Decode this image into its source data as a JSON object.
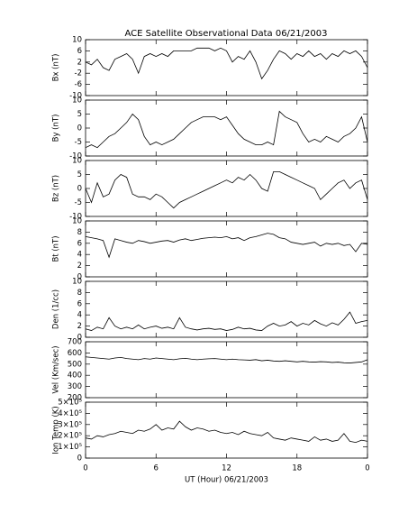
{
  "chart_data": [
    {
      "type": "line",
      "title": "ACE Satellite Observational Data   06/21/2003",
      "ylabel": "Bx (nT)",
      "color": "#000000",
      "xlim": [
        0,
        24
      ],
      "ylim": [
        -10,
        10
      ],
      "yticks": [
        -10,
        -6,
        -2,
        2,
        6,
        10
      ],
      "x": [
        0,
        0.5,
        1,
        1.5,
        2,
        2.5,
        3,
        3.5,
        4,
        4.5,
        5,
        5.5,
        6,
        6.5,
        7,
        7.5,
        8,
        8.5,
        9,
        9.5,
        10,
        10.5,
        11,
        11.5,
        12,
        12.5,
        13,
        13.5,
        14,
        14.5,
        15,
        15.5,
        16,
        16.5,
        17,
        17.5,
        18,
        18.5,
        19,
        19.5,
        20,
        20.5,
        21,
        21.5,
        22,
        22.5,
        23,
        23.5,
        24
      ],
      "values": [
        2,
        1,
        3,
        0,
        -1,
        3,
        4,
        5,
        3,
        -2,
        4,
        5,
        4,
        5,
        4,
        6,
        6,
        6,
        6,
        7,
        7,
        7,
        6,
        7,
        6,
        2,
        4,
        3,
        6,
        2,
        -4,
        -1,
        3,
        6,
        5,
        3,
        5,
        4,
        6,
        4,
        5,
        3,
        5,
        4,
        6,
        5,
        6,
        4,
        0
      ]
    },
    {
      "type": "line",
      "ylabel": "By (nT)",
      "color": "#000000",
      "xlim": [
        0,
        24
      ],
      "ylim": [
        -10,
        10
      ],
      "yticks": [
        -10,
        -5,
        0,
        5,
        10
      ],
      "x": [
        0,
        0.5,
        1,
        1.5,
        2,
        2.5,
        3,
        3.5,
        4,
        4.5,
        5,
        5.5,
        6,
        6.5,
        7,
        7.5,
        8,
        8.5,
        9,
        9.5,
        10,
        10.5,
        11,
        11.5,
        12,
        12.5,
        13,
        13.5,
        14,
        14.5,
        15,
        15.5,
        16,
        16.5,
        17,
        17.5,
        18,
        18.5,
        19,
        19.5,
        20,
        20.5,
        21,
        21.5,
        22,
        22.5,
        23,
        23.5,
        24
      ],
      "values": [
        -7,
        -6,
        -7,
        -5,
        -3,
        -2,
        0,
        2,
        5,
        3,
        -3,
        -6,
        -5,
        -6,
        -5,
        -4,
        -2,
        0,
        2,
        3,
        4,
        4,
        4,
        3,
        4,
        1,
        -2,
        -4,
        -5,
        -6,
        -6,
        -5,
        -6,
        6,
        4,
        3,
        2,
        -2,
        -5,
        -4,
        -5,
        -3,
        -4,
        -5,
        -3,
        -2,
        0,
        4,
        -5
      ]
    },
    {
      "type": "line",
      "ylabel": "Bz (nT)",
      "color": "#000000",
      "xlim": [
        0,
        24
      ],
      "ylim": [
        -10,
        10
      ],
      "yticks": [
        -10,
        -5,
        0,
        5,
        10
      ],
      "x": [
        0,
        0.5,
        1,
        1.5,
        2,
        2.5,
        3,
        3.5,
        4,
        4.5,
        5,
        5.5,
        6,
        6.5,
        7,
        7.5,
        8,
        8.5,
        9,
        9.5,
        10,
        10.5,
        11,
        11.5,
        12,
        12.5,
        13,
        13.5,
        14,
        14.5,
        15,
        15.5,
        16,
        16.5,
        17,
        17.5,
        18,
        18.5,
        19,
        19.5,
        20,
        20.5,
        21,
        21.5,
        22,
        22.5,
        23,
        23.5,
        24
      ],
      "values": [
        0,
        -5,
        2,
        -3,
        -2,
        3,
        5,
        4,
        -2,
        -3,
        -3,
        -4,
        -2,
        -3,
        -5,
        -7,
        -5,
        -4,
        -3,
        -2,
        -1,
        0,
        1,
        2,
        3,
        2,
        4,
        3,
        5,
        3,
        0,
        -1,
        6,
        6,
        5,
        4,
        3,
        2,
        1,
        0,
        -4,
        -2,
        0,
        2,
        3,
        0,
        2,
        3,
        -4
      ]
    },
    {
      "type": "line",
      "ylabel": "Bt (nT)",
      "color": "#000000",
      "xlim": [
        0,
        24
      ],
      "ylim": [
        0,
        10
      ],
      "yticks": [
        0,
        2,
        4,
        6,
        8,
        10
      ],
      "x": [
        0,
        0.5,
        1,
        1.5,
        2,
        2.5,
        3,
        3.5,
        4,
        4.5,
        5,
        5.5,
        6,
        6.5,
        7,
        7.5,
        8,
        8.5,
        9,
        9.5,
        10,
        10.5,
        11,
        11.5,
        12,
        12.5,
        13,
        13.5,
        14,
        14.5,
        15,
        15.5,
        16,
        16.5,
        17,
        17.5,
        18,
        18.5,
        19,
        19.5,
        20,
        20.5,
        21,
        21.5,
        22,
        22.5,
        23,
        23.5,
        24
      ],
      "values": [
        7.2,
        7,
        6.8,
        6.5,
        3.5,
        6.8,
        6.5,
        6.2,
        6,
        6.5,
        6.3,
        6,
        6.2,
        6.4,
        6.5,
        6.2,
        6.6,
        6.8,
        6.5,
        6.7,
        6.9,
        7,
        7.1,
        7,
        7.2,
        6.8,
        7,
        6.5,
        7,
        7.2,
        7.5,
        7.8,
        7.6,
        7,
        6.8,
        6.2,
        6,
        5.8,
        6,
        6.2,
        5.5,
        6,
        5.8,
        6,
        5.6,
        5.8,
        4.5,
        6,
        5.8
      ]
    },
    {
      "type": "line",
      "ylabel": "Den (1/cc)",
      "color": "#000000",
      "xlim": [
        0,
        24
      ],
      "ylim": [
        0,
        10
      ],
      "yticks": [
        0,
        2,
        4,
        6,
        8,
        10
      ],
      "x": [
        0,
        0.5,
        1,
        1.5,
        2,
        2.5,
        3,
        3.5,
        4,
        4.5,
        5,
        5.5,
        6,
        6.5,
        7,
        7.5,
        8,
        8.5,
        9,
        9.5,
        10,
        10.5,
        11,
        11.5,
        12,
        12.5,
        13,
        13.5,
        14,
        14.5,
        15,
        15.5,
        16,
        16.5,
        17,
        17.5,
        18,
        18.5,
        19,
        19.5,
        20,
        20.5,
        21,
        21.5,
        22,
        22.5,
        23,
        23.5,
        24
      ],
      "values": [
        1.5,
        1.2,
        1.8,
        1.5,
        3.5,
        2,
        1.5,
        1.8,
        1.5,
        2.2,
        1.5,
        1.8,
        2,
        1.6,
        1.8,
        1.5,
        3.5,
        1.8,
        1.5,
        1.3,
        1.5,
        1.6,
        1.4,
        1.5,
        1.2,
        1.4,
        1.8,
        1.5,
        1.6,
        1.3,
        1.2,
        2,
        2.5,
        2,
        2.2,
        2.8,
        2,
        2.5,
        2.2,
        3,
        2.4,
        2,
        2.6,
        2.2,
        3.2,
        4.5,
        2.5,
        2.8,
        3
      ]
    },
    {
      "type": "line",
      "ylabel": "Vel (Km/sec)",
      "color": "#000000",
      "xlim": [
        0,
        24
      ],
      "ylim": [
        200,
        700
      ],
      "yticks": [
        200,
        300,
        400,
        500,
        600,
        700
      ],
      "x": [
        0,
        0.5,
        1,
        1.5,
        2,
        2.5,
        3,
        3.5,
        4,
        4.5,
        5,
        5.5,
        6,
        6.5,
        7,
        7.5,
        8,
        8.5,
        9,
        9.5,
        10,
        10.5,
        11,
        11.5,
        12,
        12.5,
        13,
        13.5,
        14,
        14.5,
        15,
        15.5,
        16,
        16.5,
        17,
        17.5,
        18,
        18.5,
        19,
        19.5,
        20,
        20.5,
        21,
        21.5,
        22,
        22.5,
        23,
        23.5,
        24
      ],
      "values": [
        565,
        560,
        555,
        550,
        545,
        555,
        560,
        550,
        545,
        540,
        550,
        545,
        555,
        550,
        545,
        540,
        548,
        552,
        545,
        540,
        545,
        548,
        550,
        545,
        540,
        545,
        540,
        538,
        535,
        540,
        530,
        535,
        528,
        525,
        530,
        525,
        520,
        525,
        520,
        518,
        522,
        520,
        515,
        518,
        512,
        510,
        515,
        520,
        540
      ]
    },
    {
      "type": "line",
      "ylabel": "Ion Temp (K)",
      "xlabel": "UT (Hour)  06/21/2003",
      "color": "#000000",
      "xlim": [
        0,
        24
      ],
      "xticks": [
        0,
        6,
        12,
        18,
        {
          "value": 24,
          "label": "0"
        }
      ],
      "ylim": [
        0,
        500000
      ],
      "yticks": [
        0,
        {
          "value": 100000,
          "label": "1×10⁵"
        },
        {
          "value": 200000,
          "label": "2×10⁵"
        },
        {
          "value": 300000,
          "label": "3×10⁵"
        },
        {
          "value": 400000,
          "label": "4×10⁵"
        },
        {
          "value": 500000,
          "label": "5×10⁵"
        }
      ],
      "x": [
        0,
        0.5,
        1,
        1.5,
        2,
        2.5,
        3,
        3.5,
        4,
        4.5,
        5,
        5.5,
        6,
        6.5,
        7,
        7.5,
        8,
        8.5,
        9,
        9.5,
        10,
        10.5,
        11,
        11.5,
        12,
        12.5,
        13,
        13.5,
        14,
        14.5,
        15,
        15.5,
        16,
        16.5,
        17,
        17.5,
        18,
        18.5,
        19,
        19.5,
        20,
        20.5,
        21,
        21.5,
        22,
        22.5,
        23,
        23.5,
        24
      ],
      "values": [
        180000,
        170000,
        200000,
        190000,
        210000,
        220000,
        240000,
        230000,
        220000,
        250000,
        240000,
        260000,
        300000,
        250000,
        270000,
        260000,
        330000,
        280000,
        250000,
        270000,
        260000,
        240000,
        250000,
        230000,
        220000,
        230000,
        210000,
        240000,
        220000,
        210000,
        200000,
        230000,
        180000,
        170000,
        160000,
        180000,
        170000,
        160000,
        150000,
        190000,
        160000,
        170000,
        150000,
        160000,
        220000,
        150000,
        140000,
        160000,
        150000
      ]
    }
  ]
}
